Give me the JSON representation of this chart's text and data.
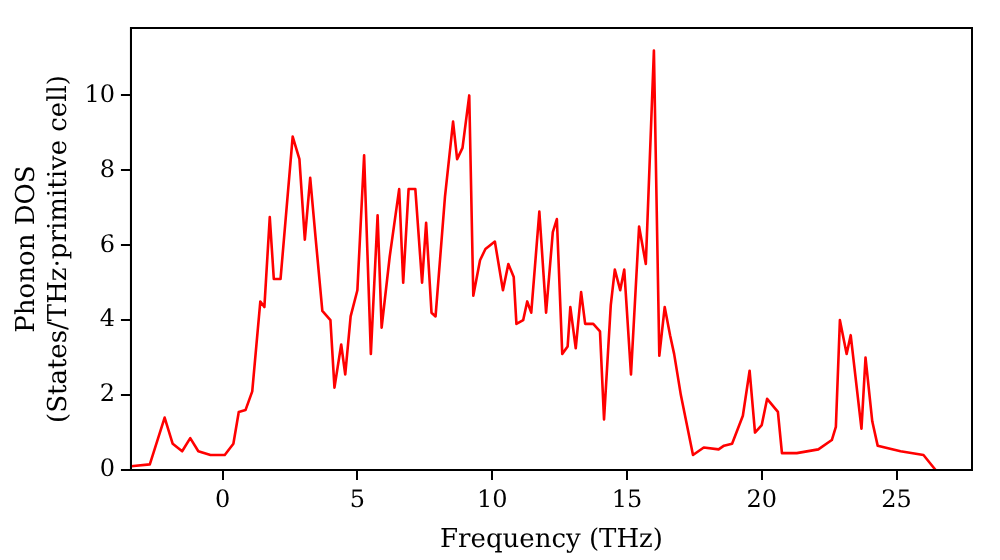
{
  "chart_data": {
    "type": "line",
    "xlabel": "Frequency (THz)",
    "ylabel": "Phonon DOS\n(States/THz·primitive cell)",
    "xlim": [
      -3.4,
      27.8
    ],
    "xticks": [
      0,
      5,
      10,
      15,
      20,
      25
    ],
    "ylim": [
      0,
      11.8
    ],
    "yticks": [
      0,
      2,
      4,
      6,
      8,
      10
    ],
    "grid": false,
    "legend": false,
    "marker": "none",
    "line_style": "solid",
    "series": [
      {
        "color": "#ff0000",
        "x": [
          -3.4,
          -2.7,
          -2.15,
          -1.85,
          -1.5,
          -1.2,
          -0.9,
          -0.45,
          0.08,
          0.4,
          0.6,
          0.85,
          1.1,
          1.4,
          1.55,
          1.75,
          1.9,
          2.15,
          2.6,
          2.85,
          3.05,
          3.25,
          3.45,
          3.7,
          4.0,
          4.15,
          4.4,
          4.55,
          4.75,
          5.0,
          5.25,
          5.5,
          5.75,
          5.9,
          6.2,
          6.55,
          6.7,
          6.9,
          7.15,
          7.4,
          7.55,
          7.75,
          7.9,
          8.25,
          8.55,
          8.7,
          8.9,
          9.15,
          9.3,
          9.55,
          9.75,
          10.1,
          10.4,
          10.6,
          10.8,
          10.9,
          11.15,
          11.3,
          11.45,
          11.75,
          12.0,
          12.25,
          12.4,
          12.6,
          12.8,
          12.9,
          13.1,
          13.3,
          13.45,
          13.75,
          14.0,
          14.15,
          14.4,
          14.55,
          14.75,
          14.9,
          15.15,
          15.45,
          15.7,
          16.0,
          16.2,
          16.4,
          16.6,
          16.75,
          17.0,
          17.45,
          17.85,
          18.4,
          18.6,
          18.9,
          19.3,
          19.55,
          19.75,
          20.0,
          20.2,
          20.6,
          20.75,
          21.3,
          22.1,
          22.6,
          22.75,
          22.9,
          23.15,
          23.3,
          23.7,
          23.85,
          24.1,
          24.3,
          25.15,
          26.0,
          26.45
        ],
        "values": [
          0.1,
          0.15,
          1.4,
          0.7,
          0.5,
          0.85,
          0.5,
          0.4,
          0.4,
          0.7,
          1.55,
          1.6,
          2.1,
          4.5,
          4.35,
          6.75,
          5.1,
          5.1,
          8.9,
          8.3,
          6.15,
          7.8,
          6.2,
          4.25,
          4.0,
          2.2,
          3.35,
          2.55,
          4.1,
          4.8,
          8.4,
          3.1,
          6.8,
          3.8,
          5.7,
          7.5,
          5.0,
          7.5,
          7.5,
          5.0,
          6.6,
          4.2,
          4.1,
          7.3,
          9.3,
          8.3,
          8.6,
          10.0,
          4.65,
          5.6,
          5.9,
          6.1,
          4.8,
          5.5,
          5.15,
          3.9,
          4.0,
          4.5,
          4.2,
          6.9,
          4.2,
          6.35,
          6.7,
          3.1,
          3.3,
          4.35,
          3.25,
          4.75,
          3.9,
          3.9,
          3.7,
          1.35,
          4.4,
          5.35,
          4.8,
          5.35,
          2.55,
          6.5,
          5.5,
          11.2,
          3.05,
          4.35,
          3.6,
          3.1,
          2.0,
          0.4,
          0.6,
          0.55,
          0.65,
          0.7,
          1.45,
          2.65,
          1.0,
          1.2,
          1.9,
          1.55,
          0.45,
          0.45,
          0.55,
          0.8,
          1.15,
          4.0,
          3.1,
          3.6,
          1.1,
          3.0,
          1.3,
          0.65,
          0.5,
          0.4,
          0
        ]
      }
    ]
  }
}
